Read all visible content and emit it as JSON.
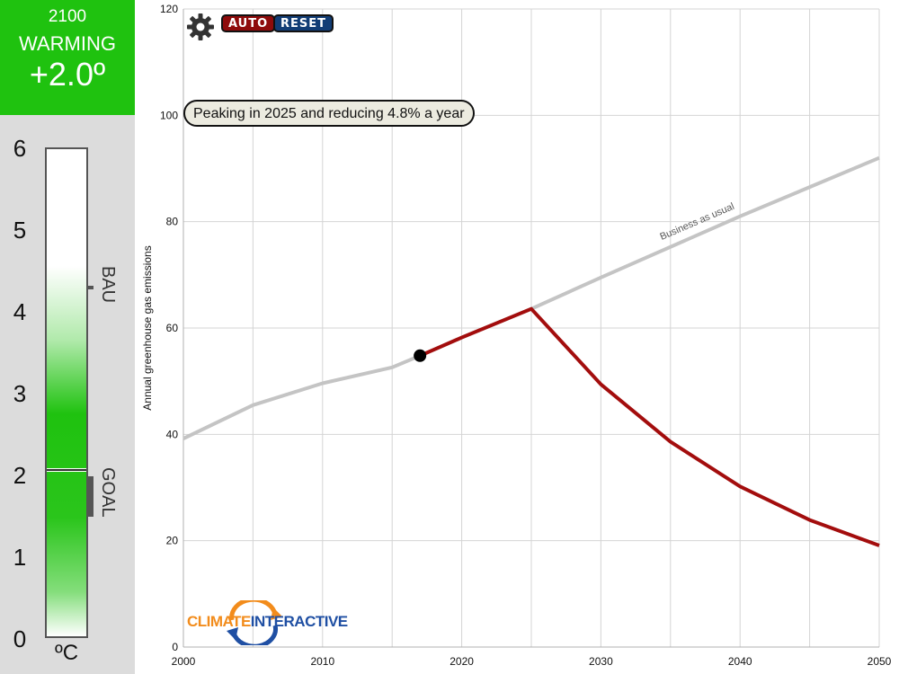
{
  "warming": {
    "year": "2100",
    "label": "WARMING",
    "value": "+2.0º",
    "header_color": "#1fc20f"
  },
  "thermometer": {
    "ticks": [
      "6",
      "5",
      "4",
      "3",
      "2",
      "1",
      "0"
    ],
    "unit": "ºC",
    "current_level_c": 2.05,
    "bau_marker_label": "BAU",
    "bau_level_c": 4.3,
    "goal_marker_label": "GOAL",
    "goal_range_c": [
      1.5,
      2.0
    ]
  },
  "toolbar": {
    "settings_icon": "gear-icon",
    "auto_label": "AUTO",
    "reset_label": "RESET",
    "auto_color": "#8e0b0b",
    "reset_color": "#123d75"
  },
  "scenario": {
    "text": "Peaking in 2025 and reducing 4.8% a year"
  },
  "logo": {
    "part1": "CLIMATE",
    "part2": "INTERACTIVE"
  },
  "chart_data": {
    "type": "line",
    "ylabel": "Annual greenhouse gas emissions",
    "xlabel": "",
    "xlim": [
      2000,
      2050
    ],
    "ylim": [
      0,
      120
    ],
    "x_ticks": [
      2000,
      2010,
      2020,
      2030,
      2040,
      2050
    ],
    "y_ticks": [
      0,
      20,
      40,
      60,
      80,
      100,
      120
    ],
    "grid": true,
    "series": [
      {
        "name": "Business as usual",
        "color": "#c4c4c4",
        "points": [
          [
            2000,
            39.2
          ],
          [
            2005,
            45.5
          ],
          [
            2010,
            49.6
          ],
          [
            2015,
            52.6
          ],
          [
            2017,
            54.8
          ],
          [
            2020,
            58.2
          ],
          [
            2025,
            63.6
          ],
          [
            2030,
            69.5
          ],
          [
            2040,
            81.0
          ],
          [
            2050,
            92.0
          ]
        ]
      },
      {
        "name": "",
        "color": "#a30d0d",
        "points": [
          [
            2017,
            54.8
          ],
          [
            2020,
            58.2
          ],
          [
            2025,
            63.6
          ],
          [
            2030,
            49.4
          ],
          [
            2035,
            38.6
          ],
          [
            2040,
            30.2
          ],
          [
            2045,
            23.9
          ],
          [
            2050,
            19.1
          ]
        ]
      }
    ],
    "current_point": [
      2017,
      54.8
    ]
  }
}
